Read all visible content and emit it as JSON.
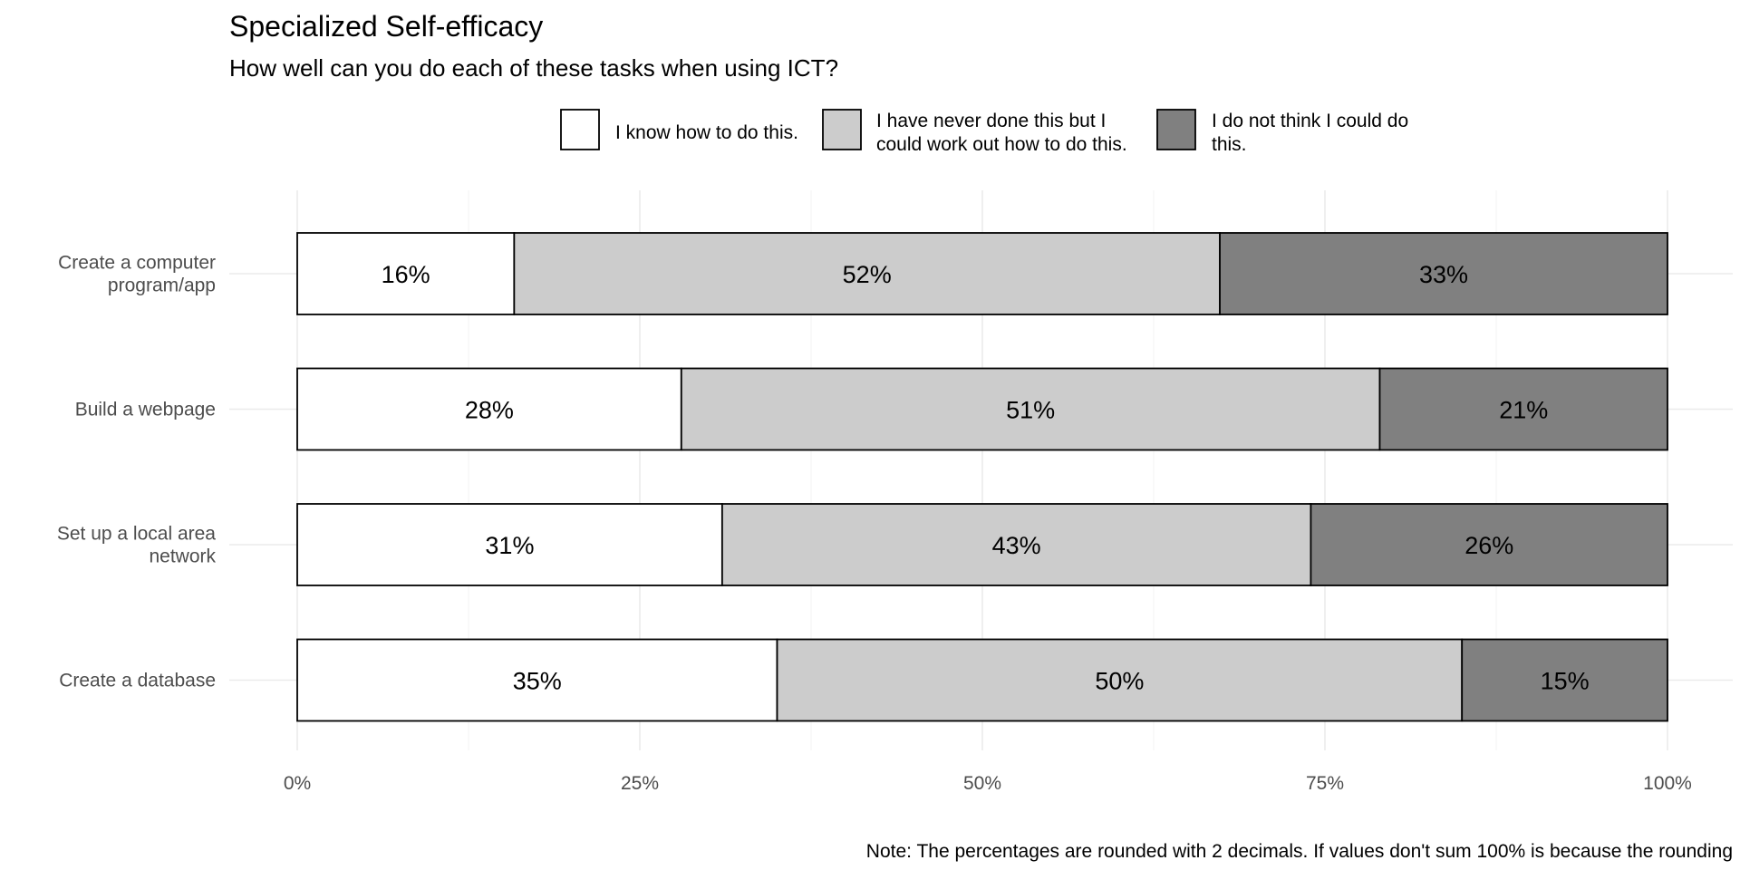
{
  "chart_data": {
    "type": "bar",
    "orientation": "horizontal",
    "stacked": true,
    "title": "Specialized Self-efficacy",
    "subtitle": "How well can you do each of these tasks when using ICT?",
    "caption": "Note: The percentages are rounded with 2 decimals. If values don't sum 100% is because the rounding",
    "categories": [
      [
        "Create a computer",
        "program/app"
      ],
      [
        "Build a webpage"
      ],
      [
        "Set up a local area",
        "network"
      ],
      [
        "Create a database"
      ]
    ],
    "series": [
      {
        "name": [
          "I know how to do this."
        ],
        "color": "#ffffff",
        "values": [
          15.83,
          28.03,
          31.01,
          35.02
        ],
        "labels": [
          "16%",
          "28%",
          "31%",
          "35%"
        ]
      },
      {
        "name": [
          "I have never done this but I",
          "could work out how to do this."
        ],
        "color": "#cccccc",
        "values": [
          51.5,
          50.97,
          42.96,
          49.98
        ],
        "labels": [
          "52%",
          "51%",
          "43%",
          "50%"
        ]
      },
      {
        "name": [
          "I do not think I could do",
          "this."
        ],
        "color": "#808080",
        "values": [
          32.67,
          21.0,
          26.03,
          15.0
        ],
        "labels": [
          "33%",
          "21%",
          "26%",
          "15%"
        ]
      }
    ],
    "x_ticks": [
      0,
      25,
      50,
      75,
      100
    ],
    "x_tick_labels": [
      "0%",
      "25%",
      "50%",
      "75%",
      "100%"
    ],
    "xlim": [
      0,
      100
    ],
    "legend_position": "top",
    "grid": true
  }
}
